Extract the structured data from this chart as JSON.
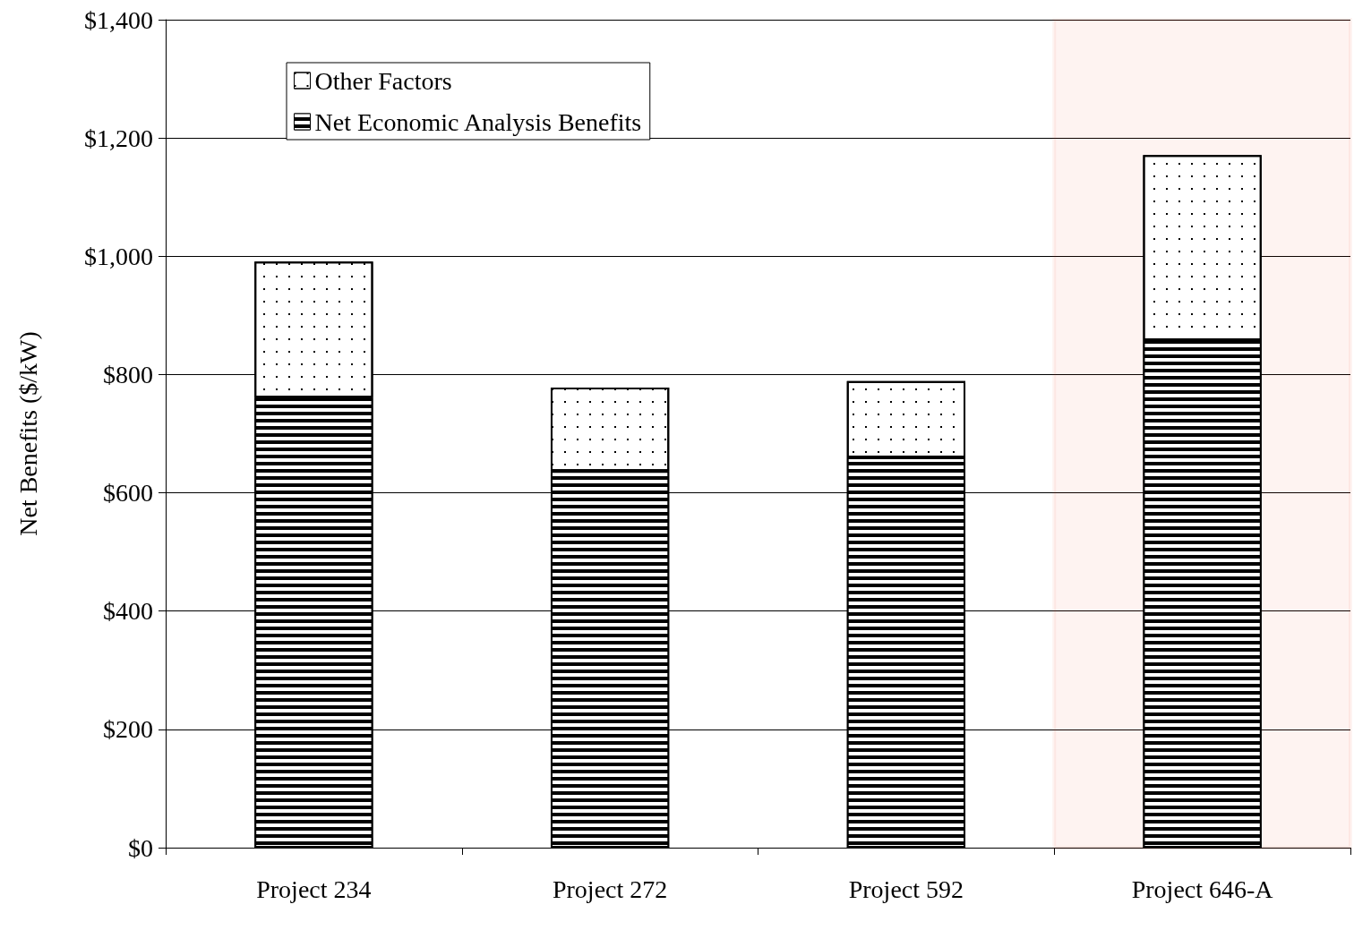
{
  "chart_data": {
    "type": "bar",
    "ylabel": "Net Benefits ($/kW)",
    "categories": [
      "Project 234",
      "Project 272",
      "Project 592",
      "Project 646-A"
    ],
    "stacked": true,
    "series": [
      {
        "name": "Net Economic Analysis Benefits",
        "color": "#000000",
        "values": [
          761,
          637,
          660,
          858
        ]
      },
      {
        "name": "Other Factors",
        "color": "#ffffff",
        "values": [
          230,
          141,
          129,
          313
        ]
      }
    ],
    "ylim": [
      0,
      1400
    ],
    "yticks": [
      {
        "value": 0,
        "label": "$0"
      },
      {
        "value": 200,
        "label": "$200"
      },
      {
        "value": 400,
        "label": "$400"
      },
      {
        "value": 600,
        "label": "$600"
      },
      {
        "value": 800,
        "label": "$800"
      },
      {
        "value": 1000,
        "label": "$1,000"
      },
      {
        "value": 1200,
        "label": "$1,200"
      },
      {
        "value": 1400,
        "label": "$1,400"
      }
    ],
    "grid": "y",
    "legend": "top left",
    "bands": [
      {
        "axis": "x",
        "from": "Project 646-A",
        "to": "Project 646-A",
        "color": "#ee3311"
      }
    ]
  }
}
